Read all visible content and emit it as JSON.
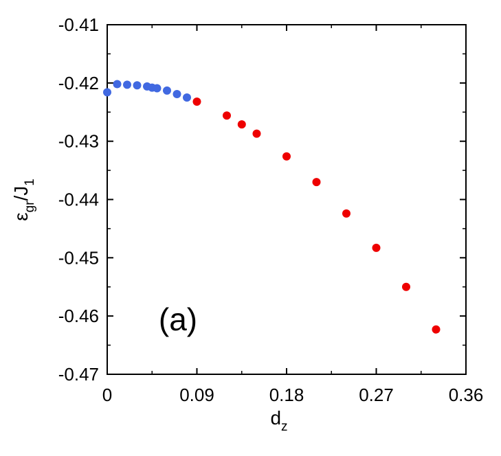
{
  "chart_data": {
    "type": "scatter",
    "panel_label": "(a)",
    "xlabel": {
      "main": "d",
      "sub": "z"
    },
    "ylabel": {
      "main": "ε",
      "sub1": "gr",
      "mid": "/J",
      "sub2": "1"
    },
    "xlim": [
      0,
      0.36
    ],
    "ylim": [
      -0.47,
      -0.41
    ],
    "xticks": [
      {
        "v": 0,
        "label": "0"
      },
      {
        "v": 0.09,
        "label": "0.09"
      },
      {
        "v": 0.18,
        "label": "0.18"
      },
      {
        "v": 0.27,
        "label": "0.27"
      },
      {
        "v": 0.36,
        "label": "0.36"
      }
    ],
    "yticks": [
      {
        "v": -0.41,
        "label": "-0.41"
      },
      {
        "v": -0.42,
        "label": "-0.42"
      },
      {
        "v": -0.43,
        "label": "-0.43"
      },
      {
        "v": -0.44,
        "label": "-0.44"
      },
      {
        "v": -0.45,
        "label": "-0.45"
      },
      {
        "v": -0.46,
        "label": "-0.46"
      },
      {
        "v": -0.47,
        "label": "-0.47"
      }
    ],
    "minor_x_step": 0.045,
    "minor_y_step": 0.005,
    "grid": false,
    "series": [
      {
        "color": "#4169e1",
        "points": [
          [
            0.0,
            -0.4216
          ],
          [
            0.01,
            -0.4202
          ],
          [
            0.02,
            -0.4203
          ],
          [
            0.03,
            -0.4204
          ],
          [
            0.04,
            -0.4206
          ],
          [
            0.045,
            -0.4208
          ],
          [
            0.05,
            -0.4209
          ],
          [
            0.06,
            -0.4213
          ],
          [
            0.07,
            -0.4219
          ],
          [
            0.08,
            -0.4225
          ]
        ]
      },
      {
        "color": "#ee0000",
        "points": [
          [
            0.09,
            -0.4232
          ],
          [
            0.12,
            -0.4256
          ],
          [
            0.135,
            -0.4271
          ],
          [
            0.15,
            -0.4287
          ],
          [
            0.18,
            -0.4326
          ],
          [
            0.21,
            -0.437
          ],
          [
            0.24,
            -0.4424
          ],
          [
            0.27,
            -0.4483
          ],
          [
            0.3,
            -0.455
          ],
          [
            0.33,
            -0.4623
          ]
        ]
      }
    ]
  }
}
